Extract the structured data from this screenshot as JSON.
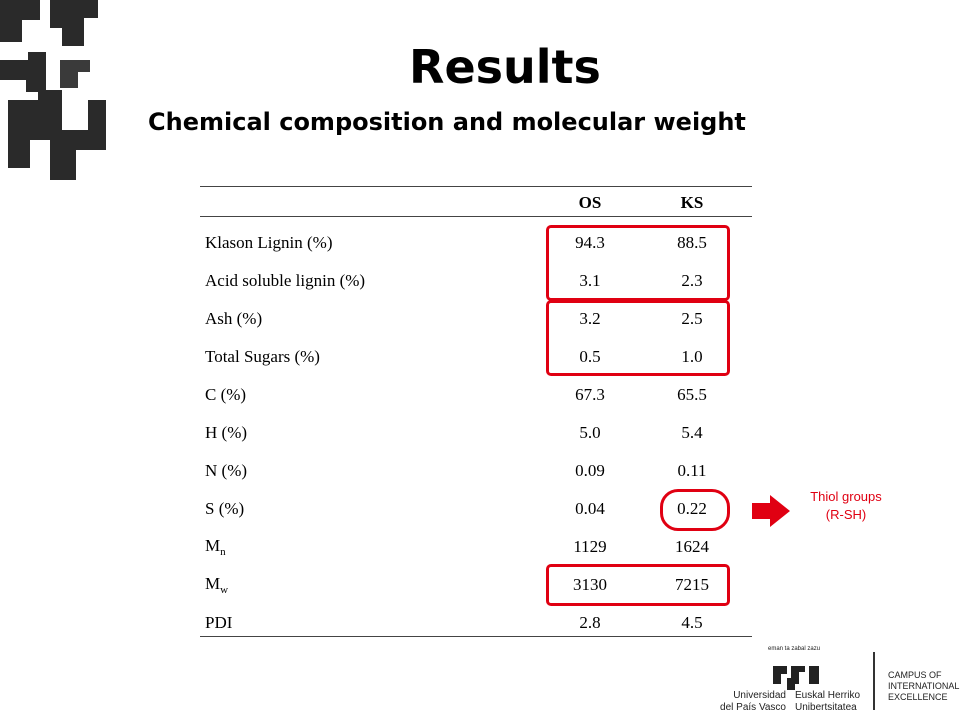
{
  "header": {
    "title": "Results",
    "subtitle": "Chemical composition and molecular weight"
  },
  "table": {
    "columns": [
      "OS",
      "KS"
    ],
    "rows": [
      {
        "label": "Klason Lignin (%)",
        "values": [
          "94.3",
          "88.5"
        ]
      },
      {
        "label": "Acid soluble lignin (%)",
        "values": [
          "3.1",
          "2.3"
        ]
      },
      {
        "label": "Ash (%)",
        "values": [
          "3.2",
          "2.5"
        ]
      },
      {
        "label": "Total Sugars (%)",
        "values": [
          "0.5",
          "1.0"
        ]
      },
      {
        "label": "C (%)",
        "values": [
          "67.3",
          "65.5"
        ]
      },
      {
        "label": "H (%)",
        "values": [
          "5.0",
          "5.4"
        ]
      },
      {
        "label": "N (%)",
        "values": [
          "0.09",
          "0.11"
        ]
      },
      {
        "label": "S (%)",
        "values": [
          "0.04",
          "0.22"
        ]
      },
      {
        "label": "M",
        "label_sub": "n",
        "values": [
          "1129",
          "1624"
        ]
      },
      {
        "label": "M",
        "label_sub": "w",
        "values": [
          "3130",
          "7215"
        ]
      },
      {
        "label": "PDI",
        "values": [
          "2.8",
          "4.5"
        ]
      }
    ]
  },
  "annotation": {
    "lines": [
      "Thiol groups",
      "(R-SH)"
    ]
  },
  "logo": {
    "motto": "eman ta zabal zazu",
    "left": [
      "Universidad",
      "del País Vasco"
    ],
    "right": [
      "Euskal Herriko",
      "Unibertsitatea"
    ],
    "campus": [
      "CAMPUS OF",
      "INTERNATIONAL",
      "EXCELLENCE"
    ]
  }
}
